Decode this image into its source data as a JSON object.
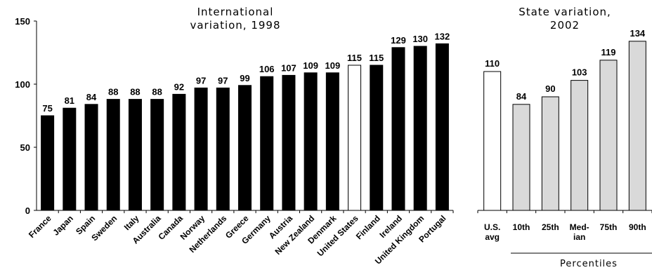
{
  "chart_data": [
    {
      "type": "bar",
      "title": "International variation, 1998",
      "title_lines": [
        "International",
        "variation, 1998"
      ],
      "xlabel": "",
      "ylabel": "",
      "ylim": [
        0,
        150
      ],
      "yticks": [
        "0",
        "50",
        "100",
        "150"
      ],
      "categories": [
        "France",
        "Japan",
        "Spain",
        "Sweden",
        "Italy",
        "Australia",
        "Canada",
        "Norway",
        "Netherlands",
        "Greece",
        "Germany",
        "Austria",
        "New Zealand",
        "Denmark",
        "United States",
        "Finland",
        "Ireland",
        "United Kingdom",
        "Portugal"
      ],
      "values": [
        75,
        81,
        84,
        88,
        88,
        88,
        92,
        97,
        97,
        99,
        106,
        107,
        109,
        109,
        115,
        115,
        129,
        130,
        132
      ],
      "bar_colors": [
        "#000000",
        "#000000",
        "#000000",
        "#000000",
        "#000000",
        "#000000",
        "#000000",
        "#000000",
        "#000000",
        "#000000",
        "#000000",
        "#000000",
        "#000000",
        "#000000",
        "#ffffff",
        "#000000",
        "#000000",
        "#000000",
        "#000000"
      ],
      "grid": false
    },
    {
      "type": "bar",
      "title": "State variation, 2002",
      "title_lines": [
        "State variation,",
        "2002"
      ],
      "xlabel": "Percentiles",
      "ylim": [
        0,
        150
      ],
      "categories": [
        "U.S. avg",
        "10th",
        "25th",
        "Median",
        "75th",
        "90th"
      ],
      "category_lines": [
        [
          "U.S.",
          "avg"
        ],
        [
          "10th"
        ],
        [
          "25th"
        ],
        [
          "Med-",
          "ian"
        ],
        [
          "75th"
        ],
        [
          "90th"
        ]
      ],
      "values": [
        110,
        84,
        90,
        103,
        119,
        134
      ],
      "bar_colors": [
        "#ffffff",
        "#d9d9d9",
        "#d9d9d9",
        "#d9d9d9",
        "#d9d9d9",
        "#d9d9d9"
      ],
      "grid": false
    }
  ]
}
